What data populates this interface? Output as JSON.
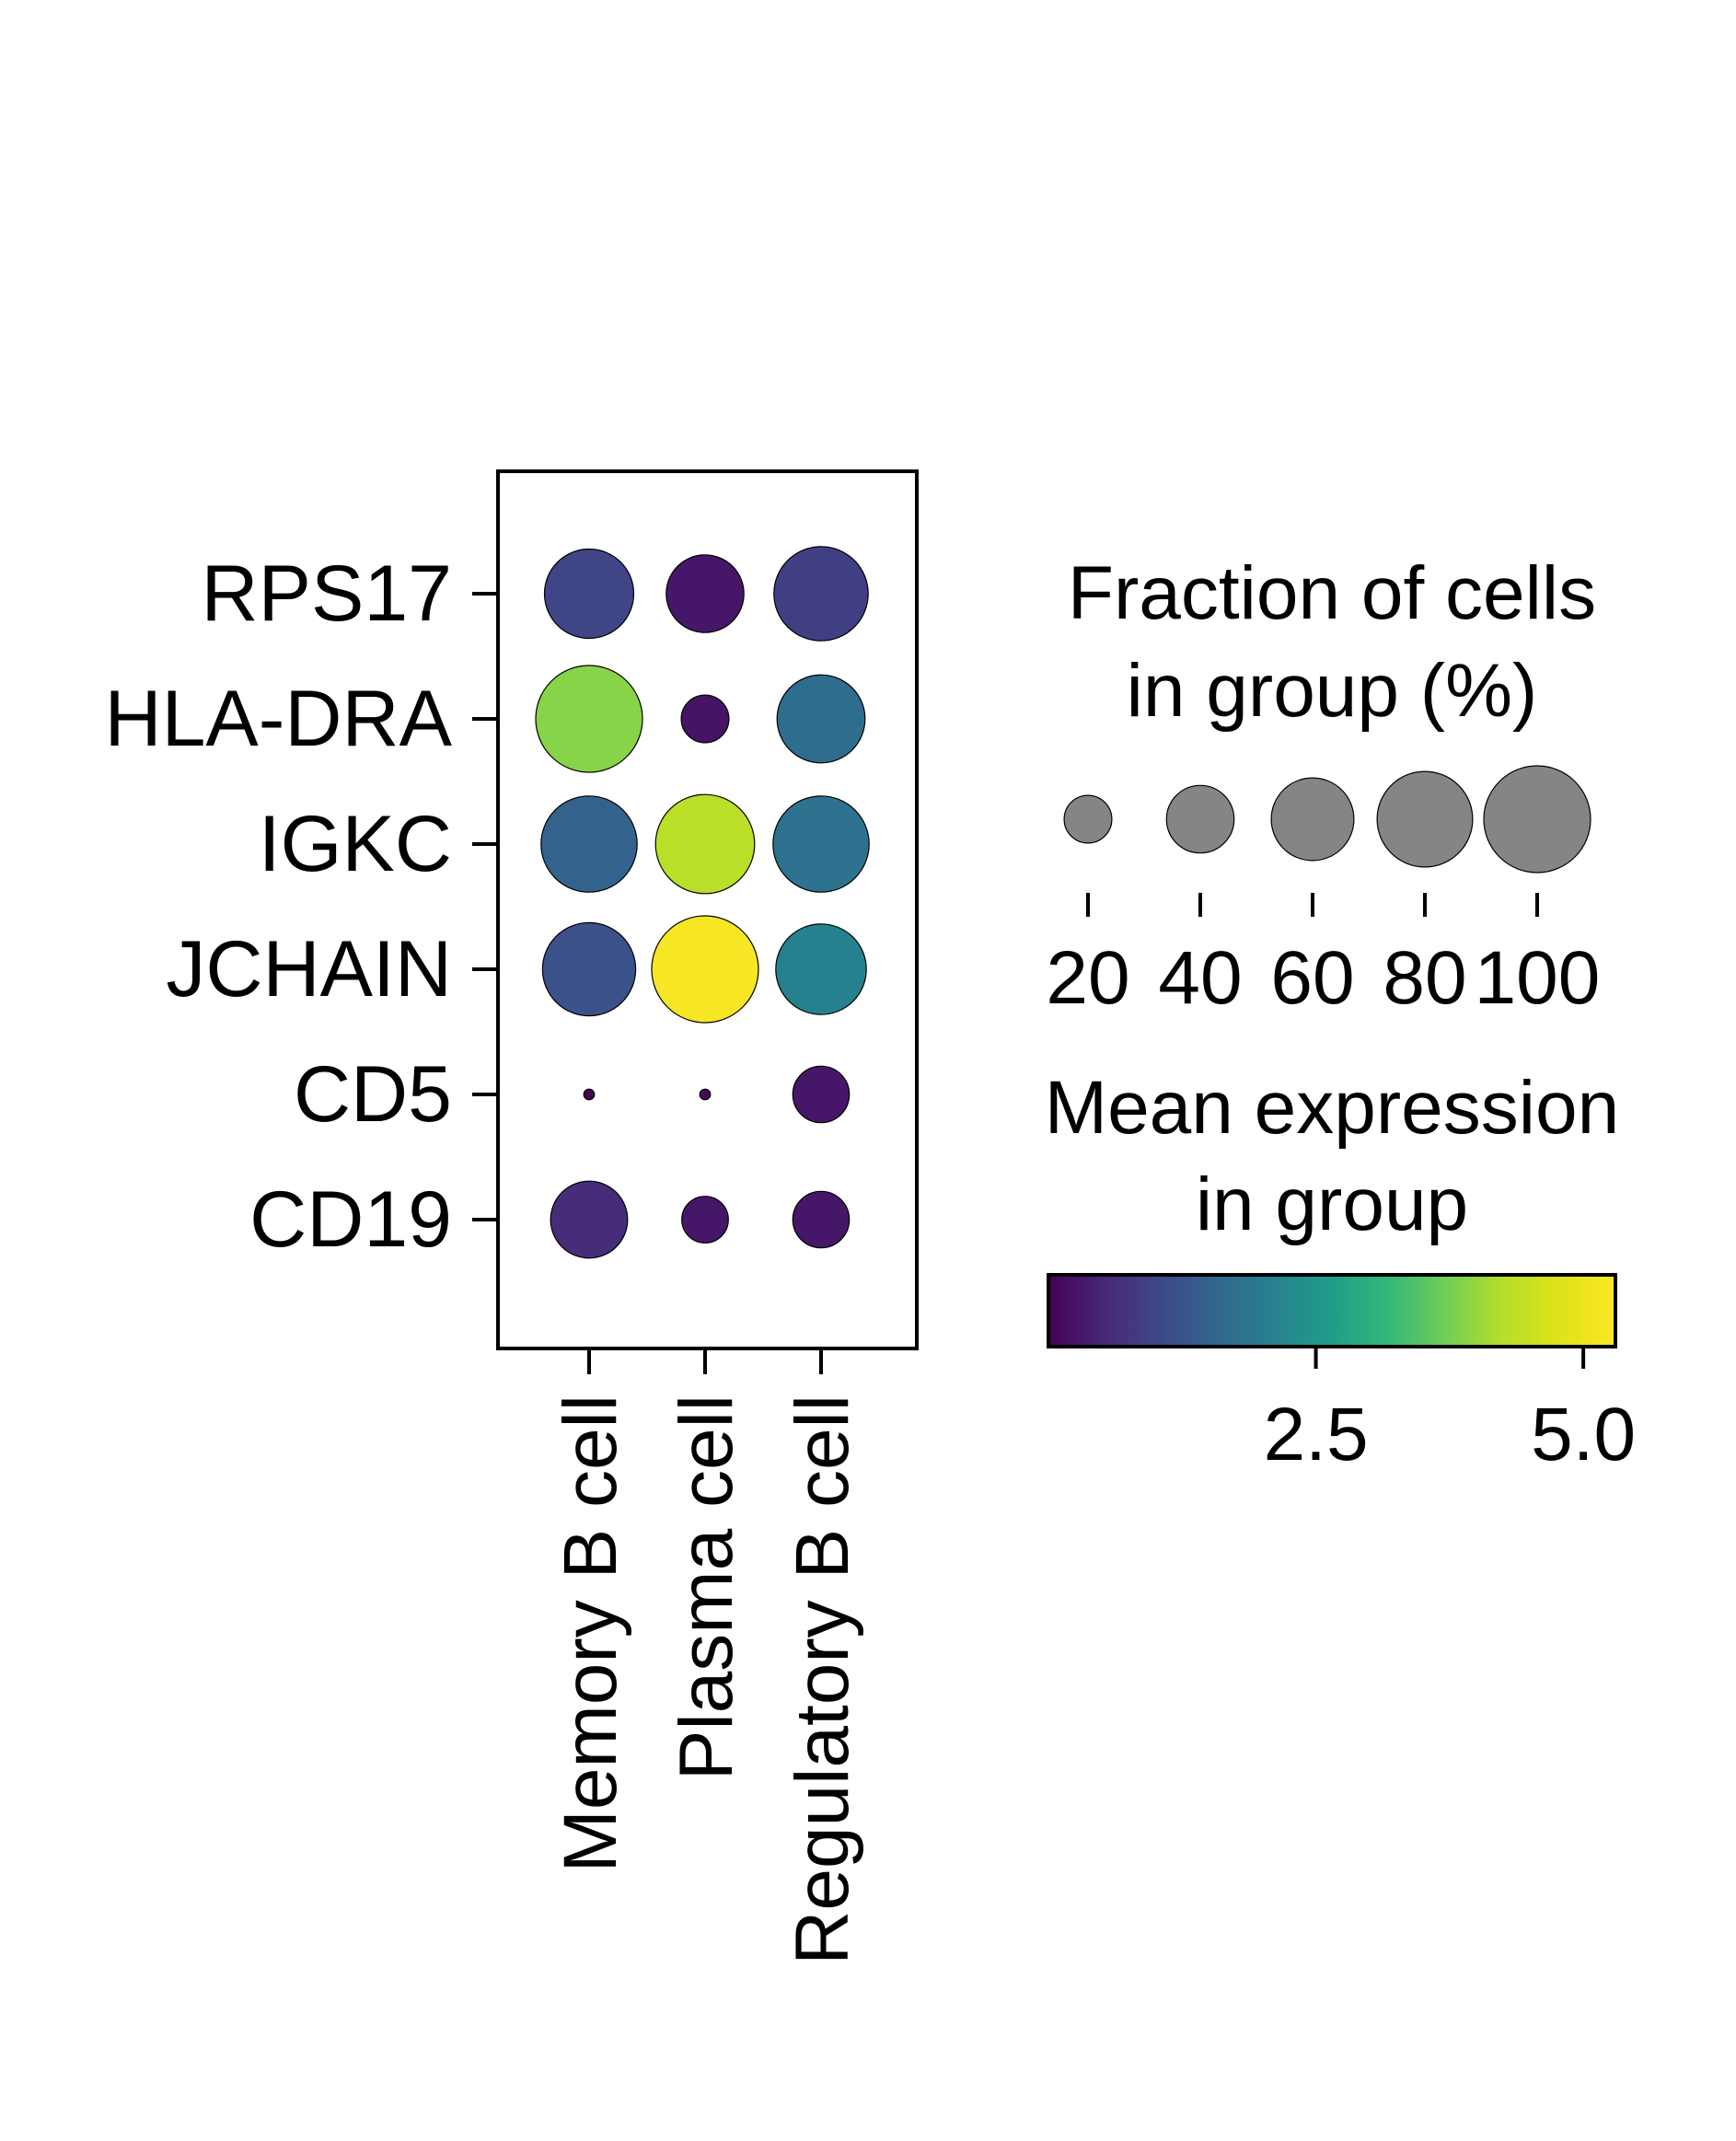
{
  "chart_data": {
    "type": "dotplot",
    "genes": [
      "RPS17",
      "HLA-DRA",
      "IGKC",
      "JCHAIN",
      "CD5",
      "CD19"
    ],
    "groups": [
      "Memory B cell",
      "Plasma cell",
      "Regulatory B cell"
    ],
    "fraction_pct": [
      [
        70,
        53,
        78
      ],
      [
        100,
        20,
        68
      ],
      [
        81,
        86,
        81
      ],
      [
        76,
        100,
        72
      ],
      [
        1,
        1,
        28
      ],
      [
        52,
        19,
        28
      ]
    ],
    "mean_expression": [
      [
        1.0,
        0.3,
        0.9
      ],
      [
        3.9,
        0.25,
        1.7
      ],
      [
        1.5,
        4.3,
        1.8
      ],
      [
        1.2,
        5.2,
        2.1
      ],
      [
        0.05,
        0.05,
        0.3
      ],
      [
        0.6,
        0.3,
        0.3
      ]
    ],
    "colormap": "viridis",
    "color_range": [
      0,
      5.3
    ],
    "size_legend": {
      "title": [
        "Fraction of cells",
        "in group (%)"
      ],
      "values": [
        20,
        40,
        60,
        80,
        100
      ],
      "tick_labels": [
        "20",
        "40",
        "60",
        "80",
        "100"
      ],
      "dot_color": "#858585"
    },
    "color_legend": {
      "title": [
        "Mean expression",
        "in group"
      ],
      "ticks": [
        2.5,
        5.0
      ],
      "tick_labels": [
        "2.5",
        "5.0"
      ]
    }
  }
}
